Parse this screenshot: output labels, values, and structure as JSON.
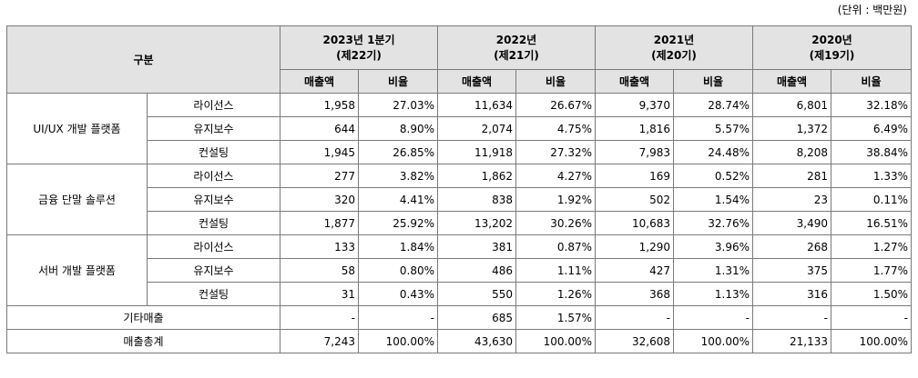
{
  "unit_label": "(단위 : 백만원)",
  "header": {
    "category": "구분",
    "periods": [
      {
        "year": "2023년 1분기",
        "term": "(제22기)"
      },
      {
        "year": "2022년",
        "term": "(제21기)"
      },
      {
        "year": "2021년",
        "term": "(제20기)"
      },
      {
        "year": "2020년",
        "term": "(제19기)"
      }
    ],
    "sales": "매출액",
    "ratio": "비율"
  },
  "groups": [
    {
      "name": "UI/UX 개발 플랫폼",
      "rows": [
        {
          "item": "라이선스",
          "cells": [
            "1,958",
            "27.03%",
            "11,634",
            "26.67%",
            "9,370",
            "28.74%",
            "6,801",
            "32.18%"
          ]
        },
        {
          "item": "유지보수",
          "cells": [
            "644",
            "8.90%",
            "2,074",
            "4.75%",
            "1,816",
            "5.57%",
            "1,372",
            "6.49%"
          ]
        },
        {
          "item": "컨설팅",
          "cells": [
            "1,945",
            "26.85%",
            "11,918",
            "27.32%",
            "7,983",
            "24.48%",
            "8,208",
            "38.84%"
          ]
        }
      ]
    },
    {
      "name": "금융 단말 솔루션",
      "rows": [
        {
          "item": "라이선스",
          "cells": [
            "277",
            "3.82%",
            "1,862",
            "4.27%",
            "169",
            "0.52%",
            "281",
            "1.33%"
          ]
        },
        {
          "item": "유지보수",
          "cells": [
            "320",
            "4.41%",
            "838",
            "1.92%",
            "502",
            "1.54%",
            "23",
            "0.11%"
          ]
        },
        {
          "item": "컨설팅",
          "cells": [
            "1,877",
            "25.92%",
            "13,202",
            "30.26%",
            "10,683",
            "32.76%",
            "3,490",
            "16.51%"
          ]
        }
      ]
    },
    {
      "name": "서버 개발 플랫폼",
      "rows": [
        {
          "item": "라이선스",
          "cells": [
            "133",
            "1.84%",
            "381",
            "0.87%",
            "1,290",
            "3.96%",
            "268",
            "1.27%"
          ]
        },
        {
          "item": "유지보수",
          "cells": [
            "58",
            "0.80%",
            "486",
            "1.11%",
            "427",
            "1.31%",
            "375",
            "1.77%"
          ]
        },
        {
          "item": "컨설팅",
          "cells": [
            "31",
            "0.43%",
            "550",
            "1.26%",
            "368",
            "1.13%",
            "316",
            "1.50%"
          ]
        }
      ]
    }
  ],
  "other": {
    "label": "기타매출",
    "cells": [
      "-",
      "-",
      "685",
      "1.57%",
      "-",
      "-",
      "-",
      "-"
    ]
  },
  "total": {
    "label": "매출총계",
    "cells": [
      "7,243",
      "100.00%",
      "43,630",
      "100.00%",
      "32,608",
      "100.00%",
      "21,133",
      "100.00%"
    ]
  }
}
